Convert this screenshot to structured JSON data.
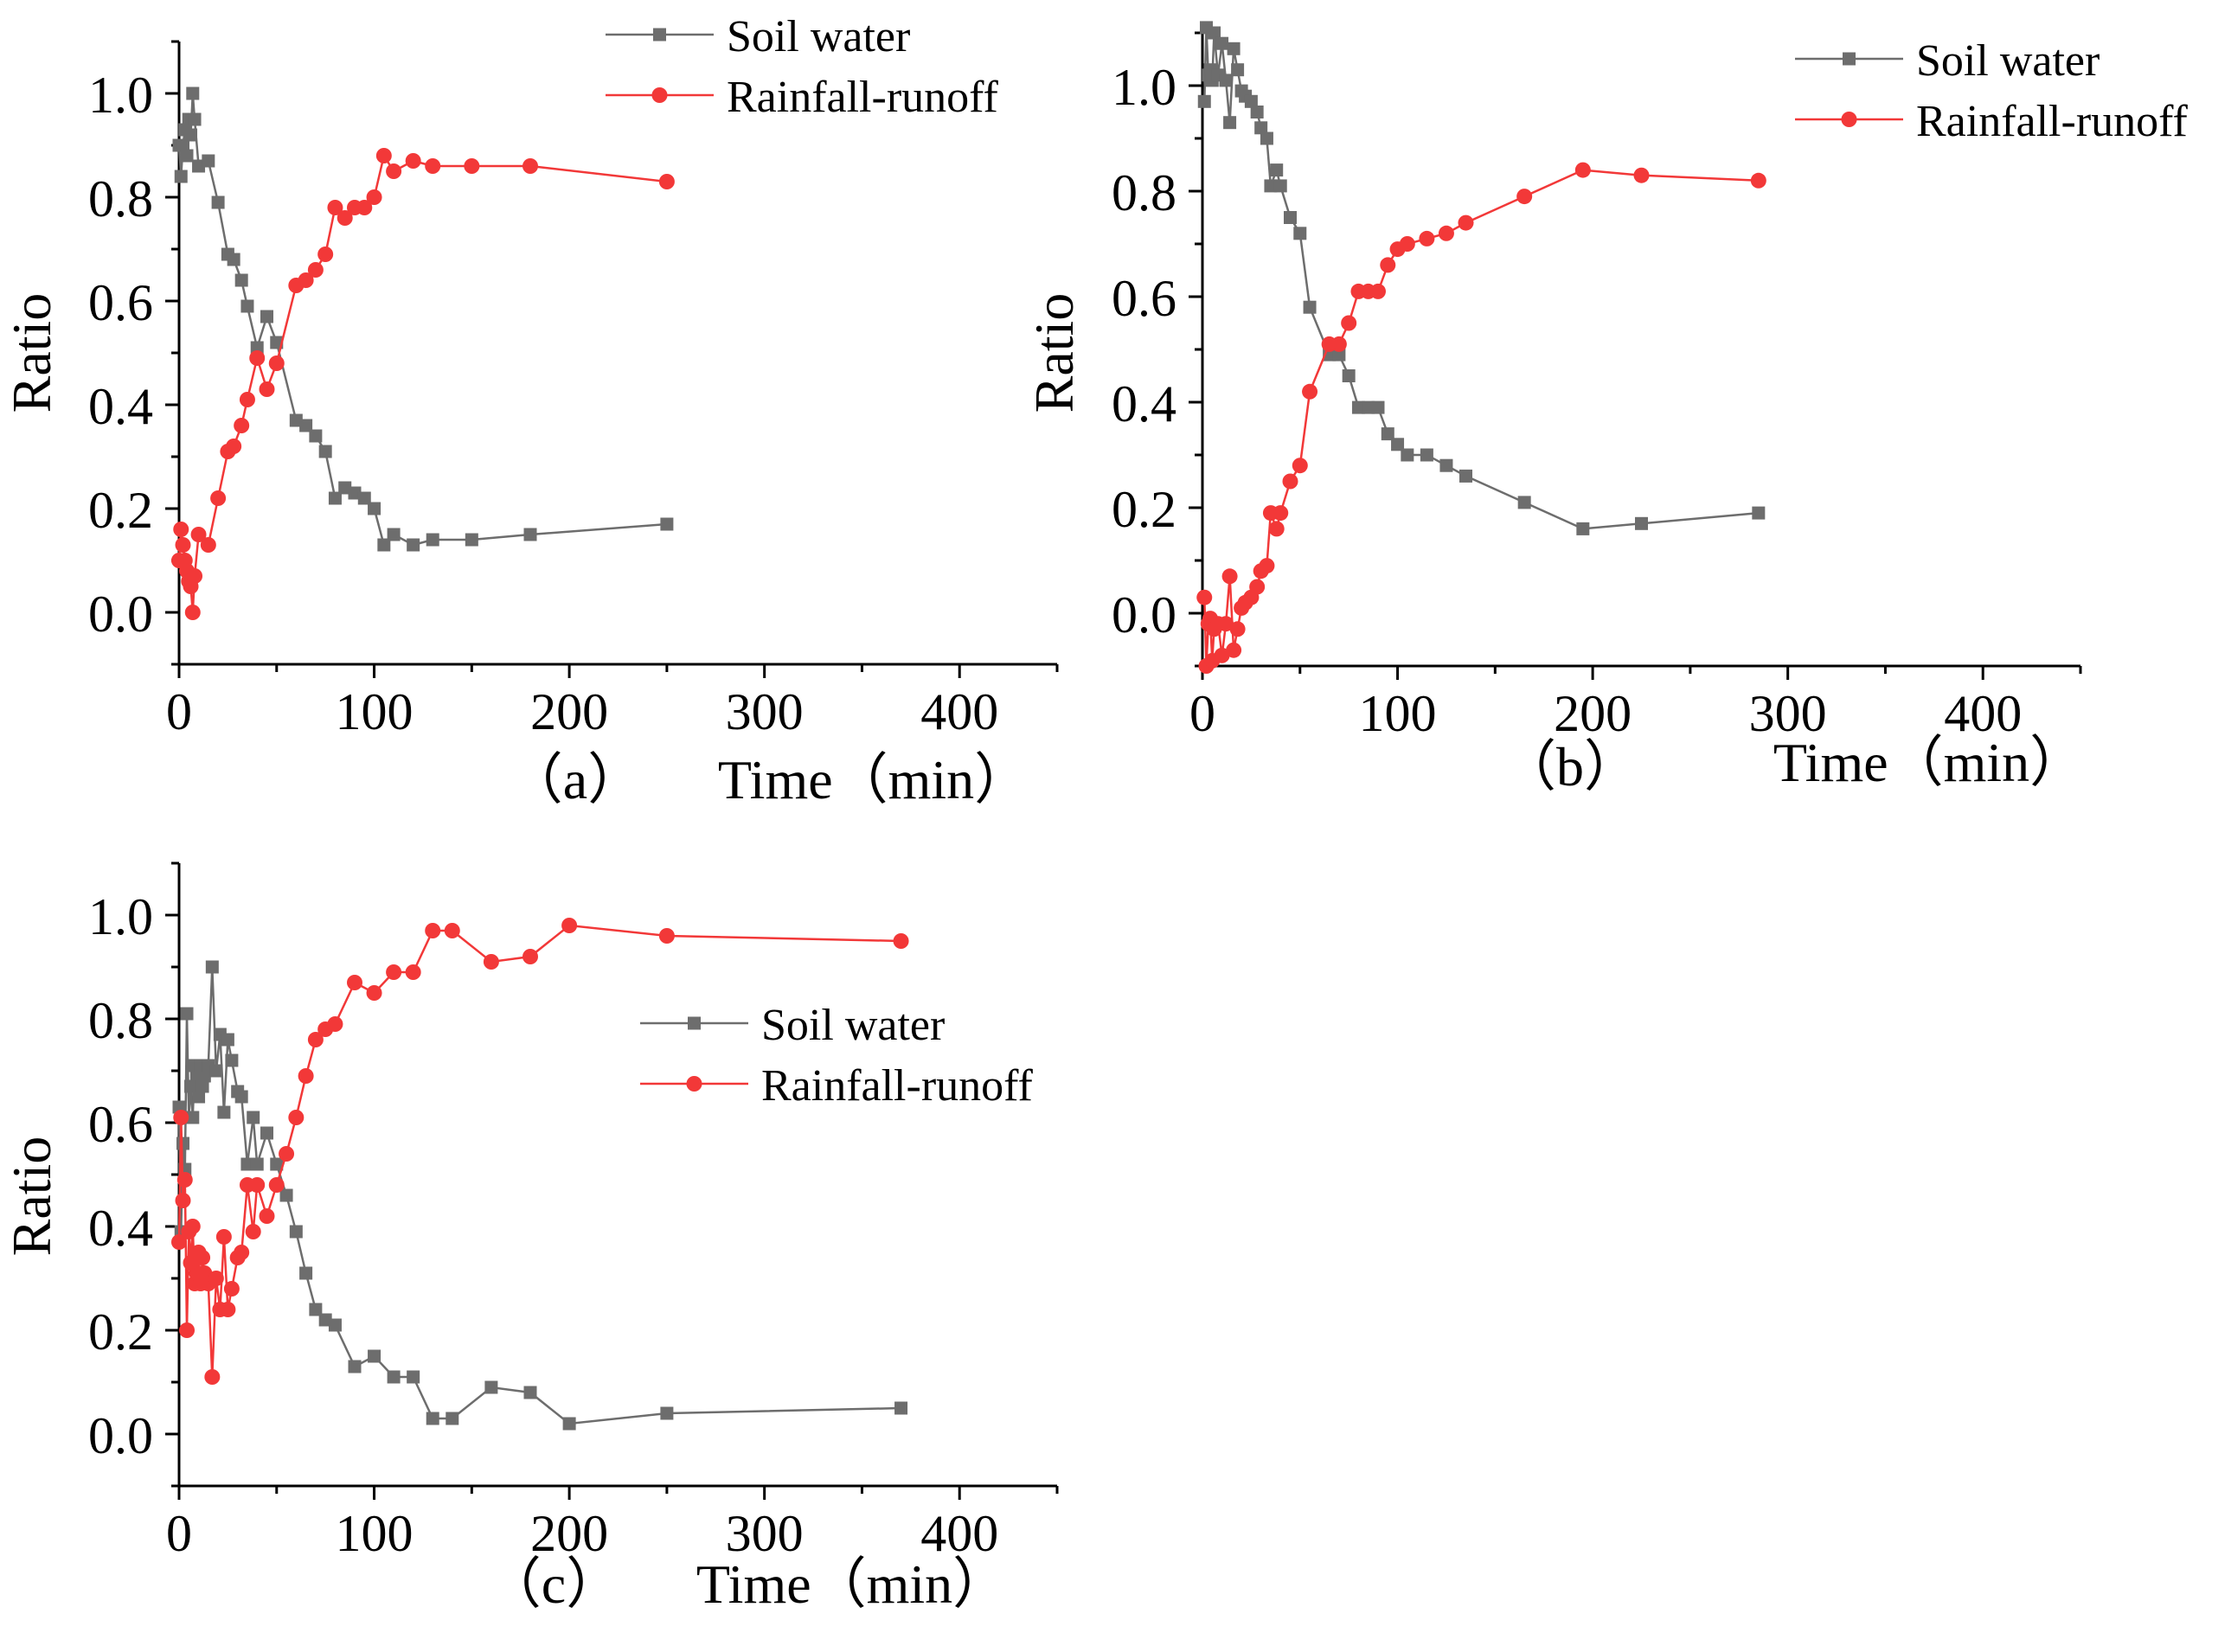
{
  "colors": {
    "soil": "#6d6d6d",
    "rain": "#f23838",
    "axis": "#000000"
  },
  "chart_data": [
    {
      "type": "line",
      "panel_label": "（a）",
      "xlabel": "Time（min）",
      "ylabel": "Ratio",
      "xlim": [
        0,
        450
      ],
      "ylim": [
        -0.1,
        1.1
      ],
      "xticks": [
        "0",
        "100",
        "200",
        "300",
        "400"
      ],
      "yticks": [
        "0.0",
        "0.2",
        "0.4",
        "0.6",
        "0.8",
        "1.0"
      ],
      "legend": "top-right",
      "series": [
        {
          "name": "Soil water",
          "marker": "square",
          "x": [
            0,
            1,
            2,
            3,
            4,
            5,
            6,
            7,
            8,
            10,
            15,
            20,
            25,
            28,
            32,
            35,
            40,
            45,
            50,
            60,
            65,
            70,
            75,
            80,
            85,
            90,
            95,
            100,
            105,
            110,
            120,
            130,
            150,
            180,
            250
          ],
          "y": [
            0.9,
            0.84,
            0.9,
            0.93,
            0.88,
            0.95,
            0.92,
            1.0,
            0.95,
            0.86,
            0.87,
            0.79,
            0.69,
            0.68,
            0.64,
            0.59,
            0.51,
            0.57,
            0.52,
            0.37,
            0.36,
            0.34,
            0.31,
            0.22,
            0.24,
            0.23,
            0.22,
            0.2,
            0.13,
            0.15,
            0.13,
            0.14,
            0.14,
            0.15,
            0.17
          ]
        },
        {
          "name": "Rainfall-runoff",
          "marker": "circle",
          "x": [
            0,
            1,
            2,
            3,
            4,
            5,
            6,
            7,
            8,
            10,
            15,
            20,
            25,
            28,
            32,
            35,
            40,
            45,
            50,
            60,
            65,
            70,
            75,
            80,
            85,
            90,
            95,
            100,
            105,
            110,
            120,
            130,
            150,
            180,
            250
          ],
          "y": [
            0.1,
            0.16,
            0.13,
            0.1,
            0.08,
            0.06,
            0.05,
            0.0,
            0.07,
            0.15,
            0.13,
            0.22,
            0.31,
            0.32,
            0.36,
            0.41,
            0.49,
            0.43,
            0.48,
            0.63,
            0.64,
            0.66,
            0.69,
            0.78,
            0.76,
            0.78,
            0.78,
            0.8,
            0.88,
            0.85,
            0.87,
            0.86,
            0.86,
            0.86,
            0.83
          ]
        }
      ]
    },
    {
      "type": "line",
      "panel_label": "（b）",
      "xlabel": "Time（min）",
      "ylabel": "Ratio",
      "xlim": [
        0,
        450
      ],
      "ylim": [
        -0.1,
        1.1
      ],
      "xticks": [
        "0",
        "100",
        "200",
        "300",
        "400"
      ],
      "yticks": [
        "0.0",
        "0.2",
        "0.4",
        "0.6",
        "0.8",
        "1.0"
      ],
      "legend": "top-right",
      "series": [
        {
          "name": "Soil water",
          "marker": "square",
          "x": [
            1,
            2,
            3,
            4,
            5,
            6,
            8,
            10,
            12,
            14,
            16,
            18,
            20,
            22,
            25,
            28,
            30,
            33,
            35,
            38,
            40,
            45,
            50,
            55,
            65,
            70,
            75,
            80,
            85,
            90,
            95,
            100,
            105,
            115,
            125,
            135,
            165,
            195,
            225,
            285
          ],
          "y": [
            0.97,
            1.11,
            1.02,
            1.03,
            1.01,
            1.1,
            1.02,
            1.08,
            1.01,
            0.93,
            1.07,
            1.03,
            0.99,
            0.98,
            0.97,
            0.95,
            0.92,
            0.9,
            0.81,
            0.84,
            0.81,
            0.75,
            0.72,
            0.58,
            0.49,
            0.49,
            0.45,
            0.39,
            0.39,
            0.39,
            0.34,
            0.32,
            0.3,
            0.3,
            0.28,
            0.26,
            0.21,
            0.16,
            0.17,
            0.19
          ]
        },
        {
          "name": "Rainfall-runoff",
          "marker": "circle",
          "x": [
            1,
            2,
            3,
            4,
            5,
            6,
            8,
            10,
            12,
            14,
            16,
            18,
            20,
            22,
            25,
            28,
            30,
            33,
            35,
            38,
            40,
            45,
            50,
            55,
            65,
            70,
            75,
            80,
            85,
            90,
            95,
            100,
            105,
            115,
            125,
            135,
            165,
            195,
            225,
            285
          ],
          "y": [
            0.03,
            -0.1,
            -0.02,
            -0.01,
            -0.09,
            -0.03,
            -0.02,
            -0.08,
            -0.02,
            0.07,
            -0.07,
            -0.03,
            0.01,
            0.02,
            0.03,
            0.05,
            0.08,
            0.09,
            0.19,
            0.16,
            0.19,
            0.25,
            0.28,
            0.42,
            0.51,
            0.51,
            0.55,
            0.61,
            0.61,
            0.61,
            0.66,
            0.69,
            0.7,
            0.71,
            0.72,
            0.74,
            0.79,
            0.84,
            0.83,
            0.82
          ]
        }
      ]
    },
    {
      "type": "line",
      "panel_label": "（c）",
      "xlabel": "Time（min）",
      "ylabel": "Ratio",
      "xlim": [
        0,
        450
      ],
      "ylim": [
        -0.1,
        1.1
      ],
      "xticks": [
        "0",
        "100",
        "200",
        "300",
        "400"
      ],
      "yticks": [
        "0.0",
        "0.2",
        "0.4",
        "0.6",
        "0.8",
        "1.0"
      ],
      "legend": "center-right",
      "series": [
        {
          "name": "Soil water",
          "marker": "square",
          "x": [
            0,
            1,
            2,
            3,
            4,
            5,
            6,
            7,
            8,
            9,
            10,
            11,
            12,
            13,
            15,
            17,
            19,
            21,
            23,
            25,
            27,
            30,
            32,
            35,
            38,
            40,
            45,
            50,
            55,
            60,
            65,
            70,
            75,
            80,
            90,
            100,
            110,
            120,
            130,
            140,
            160,
            180,
            200,
            250,
            370
          ],
          "y": [
            0.63,
            0.39,
            0.56,
            0.51,
            0.81,
            0.61,
            0.67,
            0.61,
            0.71,
            0.69,
            0.65,
            0.71,
            0.67,
            0.69,
            0.71,
            0.9,
            0.7,
            0.77,
            0.62,
            0.76,
            0.72,
            0.66,
            0.65,
            0.52,
            0.61,
            0.52,
            0.58,
            0.52,
            0.46,
            0.39,
            0.31,
            0.24,
            0.22,
            0.21,
            0.13,
            0.15,
            0.11,
            0.11,
            0.03,
            0.03,
            0.09,
            0.08,
            0.02,
            0.04,
            0.05
          ]
        },
        {
          "name": "Rainfall-runoff",
          "marker": "circle",
          "x": [
            0,
            1,
            2,
            3,
            4,
            5,
            6,
            7,
            8,
            9,
            10,
            11,
            12,
            13,
            15,
            17,
            19,
            21,
            23,
            25,
            27,
            30,
            32,
            35,
            38,
            40,
            45,
            50,
            55,
            60,
            65,
            70,
            75,
            80,
            90,
            100,
            110,
            120,
            130,
            140,
            160,
            180,
            200,
            250,
            370
          ],
          "y": [
            0.37,
            0.61,
            0.45,
            0.49,
            0.2,
            0.39,
            0.33,
            0.4,
            0.29,
            0.31,
            0.35,
            0.29,
            0.34,
            0.31,
            0.29,
            0.11,
            0.3,
            0.24,
            0.38,
            0.24,
            0.28,
            0.34,
            0.35,
            0.48,
            0.39,
            0.48,
            0.42,
            0.48,
            0.54,
            0.61,
            0.69,
            0.76,
            0.78,
            0.79,
            0.87,
            0.85,
            0.89,
            0.89,
            0.97,
            0.97,
            0.91,
            0.92,
            0.98,
            0.96,
            0.95
          ]
        }
      ]
    }
  ]
}
